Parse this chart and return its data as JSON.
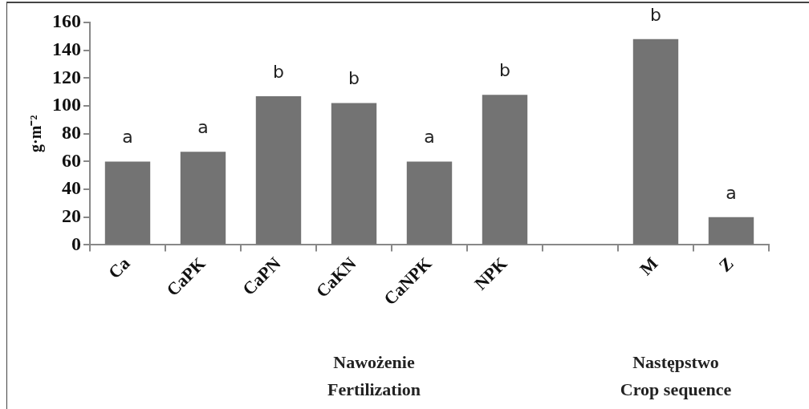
{
  "chart_data": {
    "type": "bar",
    "ylabel": "g·m⁻²",
    "categories": [
      "Ca",
      "CaPK",
      "CaPN",
      "CaKN",
      "CaNPK",
      "NPK",
      null,
      "M",
      "Z"
    ],
    "values": [
      60,
      67,
      107,
      102,
      60,
      108,
      null,
      148,
      20
    ],
    "value_labels": [
      "a",
      "a",
      "b",
      "b",
      "a",
      "b",
      null,
      "b",
      "a"
    ],
    "color": "#737373",
    "ylim": [
      0,
      160
    ],
    "yticks": [
      0,
      20,
      40,
      60,
      80,
      100,
      120,
      140,
      160
    ],
    "grid": false,
    "legend": false,
    "annotations": [
      "Nawożenie\nFertilization",
      "Następstwo\nCrop sequence"
    ]
  }
}
